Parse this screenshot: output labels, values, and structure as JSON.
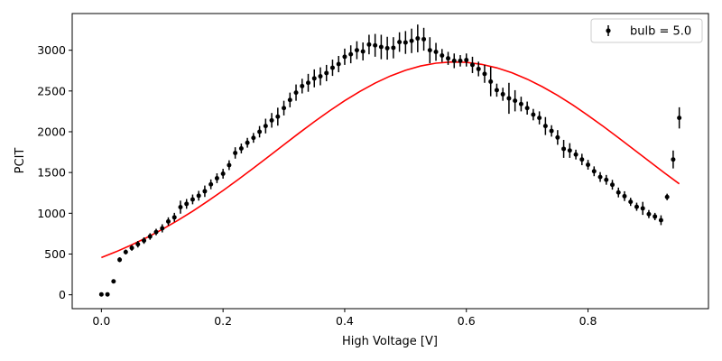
{
  "chart_data": {
    "type": "scatter",
    "title": "",
    "xlabel": "High Voltage [V]",
    "ylabel": "PCIT",
    "xlim": [
      -0.048,
      0.998
    ],
    "ylim": [
      -170,
      3450
    ],
    "xticks": [
      0.0,
      0.2,
      0.4,
      0.6,
      0.8
    ],
    "xtick_labels": [
      "0.0",
      "0.2",
      "0.4",
      "0.6",
      "0.8"
    ],
    "yticks": [
      0,
      500,
      1000,
      1500,
      2000,
      2500,
      3000
    ],
    "ytick_labels": [
      "0",
      "500",
      "1000",
      "1500",
      "2000",
      "2500",
      "3000"
    ],
    "grid": false,
    "legend_position": "top-right",
    "colors": {
      "data": "#000000",
      "fit": "#ff0000"
    },
    "series": [
      {
        "name": "bulb = 5.0",
        "kind": "errorbar",
        "points": [
          [
            0.0,
            5,
            10
          ],
          [
            0.01,
            5,
            10
          ],
          [
            0.02,
            165,
            15
          ],
          [
            0.03,
            430,
            30
          ],
          [
            0.04,
            525,
            30
          ],
          [
            0.05,
            575,
            35
          ],
          [
            0.06,
            620,
            40
          ],
          [
            0.07,
            665,
            40
          ],
          [
            0.08,
            715,
            40
          ],
          [
            0.09,
            770,
            40
          ],
          [
            0.1,
            815,
            50
          ],
          [
            0.11,
            900,
            50
          ],
          [
            0.12,
            950,
            55
          ],
          [
            0.13,
            1075,
            80
          ],
          [
            0.14,
            1115,
            60
          ],
          [
            0.15,
            1170,
            60
          ],
          [
            0.16,
            1215,
            60
          ],
          [
            0.17,
            1270,
            70
          ],
          [
            0.18,
            1355,
            60
          ],
          [
            0.19,
            1430,
            60
          ],
          [
            0.2,
            1485,
            60
          ],
          [
            0.21,
            1590,
            60
          ],
          [
            0.22,
            1740,
            70
          ],
          [
            0.23,
            1795,
            60
          ],
          [
            0.24,
            1865,
            60
          ],
          [
            0.25,
            1925,
            60
          ],
          [
            0.26,
            2000,
            70
          ],
          [
            0.27,
            2070,
            90
          ],
          [
            0.28,
            2140,
            90
          ],
          [
            0.29,
            2185,
            110
          ],
          [
            0.3,
            2290,
            90
          ],
          [
            0.31,
            2390,
            90
          ],
          [
            0.32,
            2480,
            100
          ],
          [
            0.33,
            2560,
            90
          ],
          [
            0.34,
            2600,
            110
          ],
          [
            0.35,
            2655,
            110
          ],
          [
            0.36,
            2680,
            110
          ],
          [
            0.37,
            2720,
            100
          ],
          [
            0.38,
            2785,
            100
          ],
          [
            0.39,
            2830,
            100
          ],
          [
            0.4,
            2920,
            100
          ],
          [
            0.41,
            2950,
            110
          ],
          [
            0.42,
            3000,
            110
          ],
          [
            0.43,
            2985,
            110
          ],
          [
            0.44,
            3070,
            120
          ],
          [
            0.45,
            3060,
            140
          ],
          [
            0.46,
            3040,
            150
          ],
          [
            0.47,
            3025,
            140
          ],
          [
            0.48,
            3030,
            130
          ],
          [
            0.49,
            3100,
            120
          ],
          [
            0.5,
            3095,
            140
          ],
          [
            0.51,
            3115,
            150
          ],
          [
            0.52,
            3145,
            170
          ],
          [
            0.53,
            3135,
            140
          ],
          [
            0.54,
            3000,
            160
          ],
          [
            0.55,
            2980,
            110
          ],
          [
            0.56,
            2935,
            80
          ],
          [
            0.57,
            2900,
            80
          ],
          [
            0.58,
            2870,
            90
          ],
          [
            0.59,
            2870,
            70
          ],
          [
            0.6,
            2880,
            80
          ],
          [
            0.61,
            2820,
            100
          ],
          [
            0.62,
            2770,
            90
          ],
          [
            0.63,
            2710,
            110
          ],
          [
            0.64,
            2615,
            180
          ],
          [
            0.65,
            2510,
            80
          ],
          [
            0.66,
            2460,
            80
          ],
          [
            0.67,
            2410,
            190
          ],
          [
            0.68,
            2380,
            130
          ],
          [
            0.69,
            2340,
            90
          ],
          [
            0.7,
            2290,
            80
          ],
          [
            0.71,
            2210,
            70
          ],
          [
            0.72,
            2170,
            80
          ],
          [
            0.73,
            2070,
            110
          ],
          [
            0.74,
            2010,
            70
          ],
          [
            0.75,
            1930,
            90
          ],
          [
            0.76,
            1790,
            110
          ],
          [
            0.77,
            1770,
            90
          ],
          [
            0.78,
            1720,
            60
          ],
          [
            0.79,
            1660,
            70
          ],
          [
            0.8,
            1595,
            60
          ],
          [
            0.81,
            1515,
            60
          ],
          [
            0.82,
            1445,
            60
          ],
          [
            0.83,
            1410,
            60
          ],
          [
            0.84,
            1350,
            60
          ],
          [
            0.85,
            1255,
            60
          ],
          [
            0.86,
            1210,
            60
          ],
          [
            0.87,
            1140,
            50
          ],
          [
            0.88,
            1080,
            50
          ],
          [
            0.89,
            1060,
            80
          ],
          [
            0.9,
            990,
            50
          ],
          [
            0.91,
            960,
            45
          ],
          [
            0.92,
            915,
            60
          ],
          [
            0.93,
            1200,
            40
          ],
          [
            0.94,
            1660,
            110
          ],
          [
            0.95,
            2170,
            130
          ]
        ]
      },
      {
        "kind": "line",
        "x": [
          0.0,
          0.025,
          0.05,
          0.075,
          0.1,
          0.125,
          0.15,
          0.175,
          0.2,
          0.225,
          0.25,
          0.275,
          0.3,
          0.325,
          0.35,
          0.375,
          0.4,
          0.425,
          0.45,
          0.475,
          0.5,
          0.525,
          0.55,
          0.575,
          0.6,
          0.625,
          0.65,
          0.675,
          0.7,
          0.725,
          0.75,
          0.775,
          0.8,
          0.825,
          0.85,
          0.875,
          0.9,
          0.925,
          0.95
        ],
        "y": [
          457,
          531,
          613,
          703,
          802,
          910,
          1025,
          1149,
          1279,
          1414,
          1554,
          1697,
          1841,
          1984,
          2123,
          2256,
          2381,
          2495,
          2597,
          2684,
          2754,
          2807,
          2841,
          2856,
          2851,
          2827,
          2784,
          2723,
          2645,
          2552,
          2446,
          2328,
          2200,
          2066,
          1926,
          1784,
          1641,
          1499,
          1361
        ]
      }
    ]
  }
}
